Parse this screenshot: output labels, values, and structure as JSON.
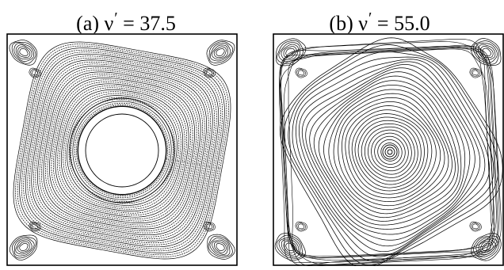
{
  "figure": {
    "panels": [
      {
        "label": "(a)",
        "symbol": "ν",
        "prime": "′",
        "equals": "=",
        "value": "37.5"
      },
      {
        "label": "(b)",
        "symbol": "ν",
        "prime": "′",
        "equals": "=",
        "value": "55.0"
      }
    ],
    "line_color": "#000000",
    "background_color": "#ffffff",
    "plot_type": "streamline contours of lid-driven cavity flow"
  }
}
